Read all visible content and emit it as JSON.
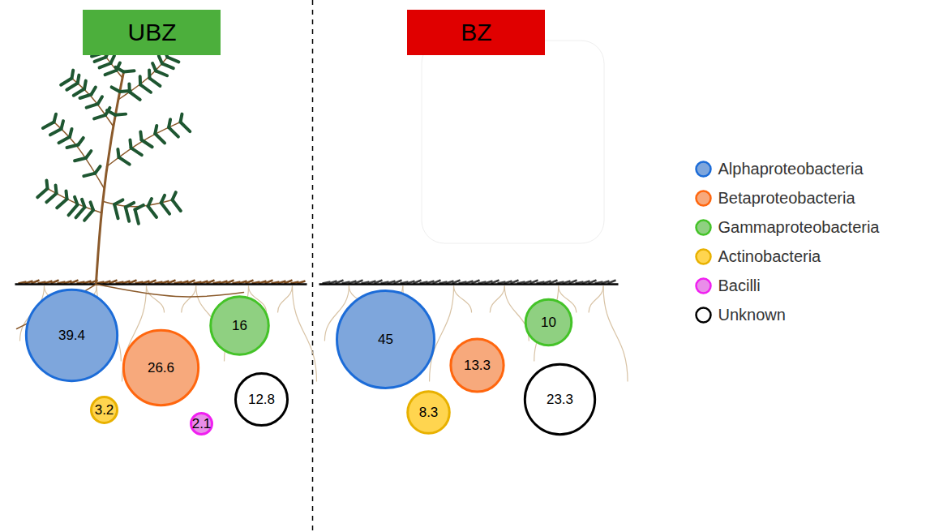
{
  "chart_data": [
    {
      "type": "bubble",
      "title": "UBZ",
      "categories": [
        "Alphaproteobacteria",
        "Betaproteobacteria",
        "Gammaproteobacteria",
        "Actinobacteria",
        "Bacilli",
        "Unknown"
      ],
      "values": [
        39.4,
        26.6,
        16,
        3.2,
        2.1,
        12.8
      ],
      "colors": [
        "#7ea6dc",
        "#f7a97c",
        "#8fd081",
        "#ffd54f",
        "#e98de9",
        "#ffffff"
      ],
      "data_labels": true,
      "legend": "right"
    },
    {
      "type": "bubble",
      "title": "BZ",
      "categories": [
        "Alphaproteobacteria",
        "Betaproteobacteria",
        "Gammaproteobacteria",
        "Actinobacteria",
        "Unknown"
      ],
      "values": [
        45,
        13.3,
        10,
        8.3,
        23.3
      ],
      "colors": [
        "#7ea6dc",
        "#f7a97c",
        "#8fd081",
        "#ffd54f",
        "#ffffff"
      ],
      "data_labels": true,
      "legend": "right"
    }
  ]
}
